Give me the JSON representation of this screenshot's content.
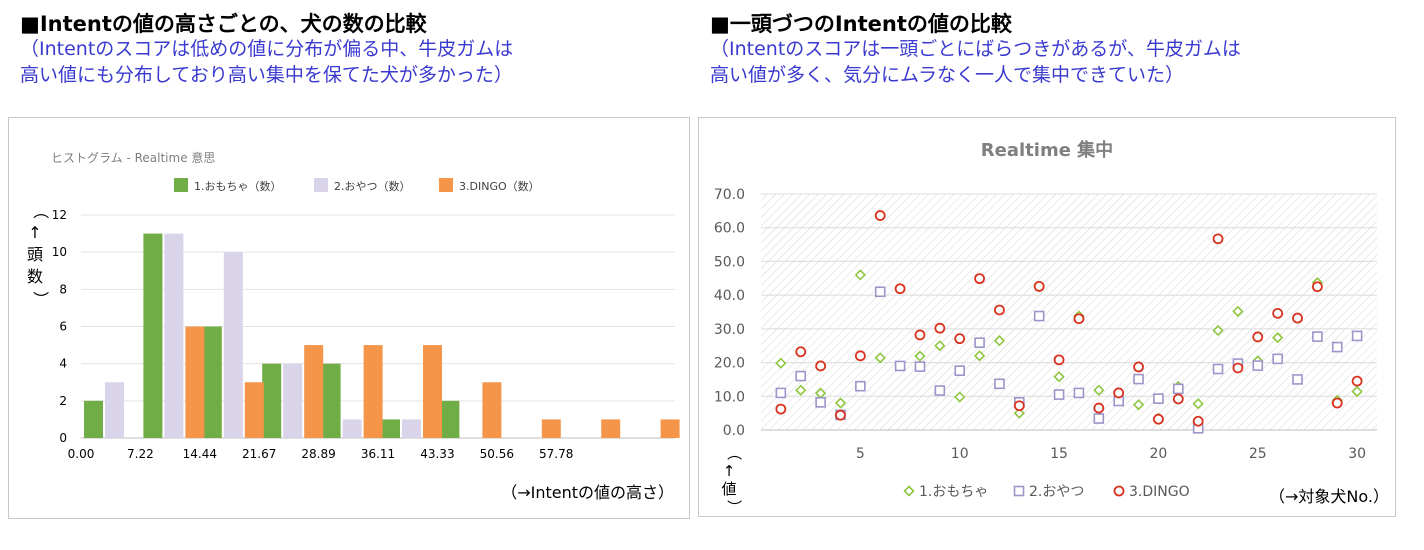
{
  "left": {
    "heading": "■Intentの値の高さごとの、犬の数の比較",
    "sub_line1": "（Intentのスコアは低めの値に分布が偏る中、牛皮ガムは",
    "sub_line2": "高い値にも分布しており高い集中を保てた犬が多かった）"
  },
  "right": {
    "heading": "■一頭づつのIntentの値の比較",
    "sub_line1": "（Intentのスコアは一頭ごとにばらつきがあるが、牛皮ガムは",
    "sub_line2": "高い値が多く、気分にムラなく一人で集中できていた）"
  },
  "chart_data": [
    {
      "type": "bar",
      "title": "ヒストグラム - Realtime 意思",
      "ylabel": "（↑頭数）",
      "xlabel": "（→Intentの値の高さ）",
      "categories": [
        "0.00",
        "7.22",
        "14.44",
        "21.67",
        "28.89",
        "36.11",
        "43.33",
        "50.56",
        "57.78",
        ""
      ],
      "yticks": [
        "0",
        "2",
        "4",
        "6",
        "8",
        "10",
        "12"
      ],
      "ylim": [
        0,
        12
      ],
      "colors": {
        "s1": "#70ad47",
        "s2": "#d9d4ea",
        "s3": "#f4954a"
      },
      "series": [
        {
          "name": "1.おもちゃ（数）",
          "values": [
            2,
            11,
            6,
            4,
            4,
            1,
            2,
            0,
            0,
            0
          ]
        },
        {
          "name": "2.おやつ（数）",
          "values": [
            3,
            11,
            10,
            4,
            1,
            1,
            0,
            0,
            0,
            0
          ]
        },
        {
          "name": "3.DINGO（数）",
          "values": [
            0,
            6,
            3,
            5,
            5,
            5,
            3,
            1,
            1,
            1
          ]
        }
      ]
    },
    {
      "type": "scatter",
      "title": "Realtime 集中",
      "ylabel": "（↑値）",
      "xlabel": "（→対象犬No.）",
      "xlim": [
        0,
        31
      ],
      "ylim": [
        0,
        70
      ],
      "xticks": [
        "5",
        "10",
        "15",
        "20",
        "25",
        "30"
      ],
      "yticks": [
        "0.0",
        "10.0",
        "20.0",
        "30.0",
        "40.0",
        "50.0",
        "60.0",
        "70.0"
      ],
      "colors": {
        "s1": "#8dc63f",
        "s2": "#9b95c9",
        "s3": "#d9321f"
      },
      "series": [
        {
          "name": "1.おもちゃ",
          "marker": "diamond",
          "x": [
            1,
            2,
            3,
            4,
            5,
            6,
            7,
            8,
            9,
            10,
            11,
            12,
            13,
            14,
            15,
            16,
            17,
            18,
            19,
            20,
            21,
            22,
            23,
            24,
            25,
            26,
            27,
            28,
            29,
            30
          ],
          "y": [
            19.8,
            11.8,
            10.9,
            8.0,
            46.0,
            21.4,
            41.9,
            21.9,
            25.0,
            9.8,
            22.0,
            26.5,
            5.0,
            42.5,
            15.8,
            33.8,
            11.8,
            11.0,
            7.5,
            3.5,
            12.9,
            7.8,
            29.5,
            35.2,
            20.5,
            27.4,
            33.2,
            43.7,
            8.8,
            11.4
          ]
        },
        {
          "name": "2.おやつ",
          "marker": "square",
          "x": [
            1,
            2,
            3,
            4,
            5,
            6,
            7,
            8,
            9,
            10,
            11,
            12,
            13,
            14,
            15,
            16,
            17,
            18,
            19,
            20,
            21,
            22,
            23,
            24,
            25,
            26,
            27,
            28,
            29,
            30
          ],
          "y": [
            11.0,
            16.0,
            8.2,
            4.5,
            13.0,
            41.0,
            19.0,
            18.8,
            11.7,
            17.6,
            25.9,
            13.7,
            8.2,
            33.8,
            10.5,
            11.0,
            3.4,
            8.6,
            15.1,
            9.3,
            12.2,
            0.5,
            18.1,
            19.7,
            19.1,
            21.1,
            15.0,
            27.7,
            24.6,
            27.9
          ]
        },
        {
          "name": "3.DINGO",
          "marker": "circle",
          "x": [
            1,
            2,
            3,
            4,
            5,
            6,
            7,
            8,
            9,
            10,
            11,
            12,
            13,
            14,
            15,
            16,
            17,
            18,
            19,
            20,
            21,
            22,
            23,
            24,
            25,
            26,
            27,
            28,
            29,
            30
          ],
          "y": [
            6.2,
            23.2,
            19.0,
            4.4,
            22.0,
            63.6,
            41.9,
            28.2,
            30.2,
            27.1,
            44.9,
            35.6,
            7.2,
            42.6,
            20.8,
            33.0,
            6.5,
            11.0,
            18.7,
            3.2,
            9.2,
            2.6,
            56.7,
            18.4,
            27.6,
            34.6,
            33.2,
            42.5,
            8.0,
            14.5
          ]
        }
      ]
    }
  ]
}
